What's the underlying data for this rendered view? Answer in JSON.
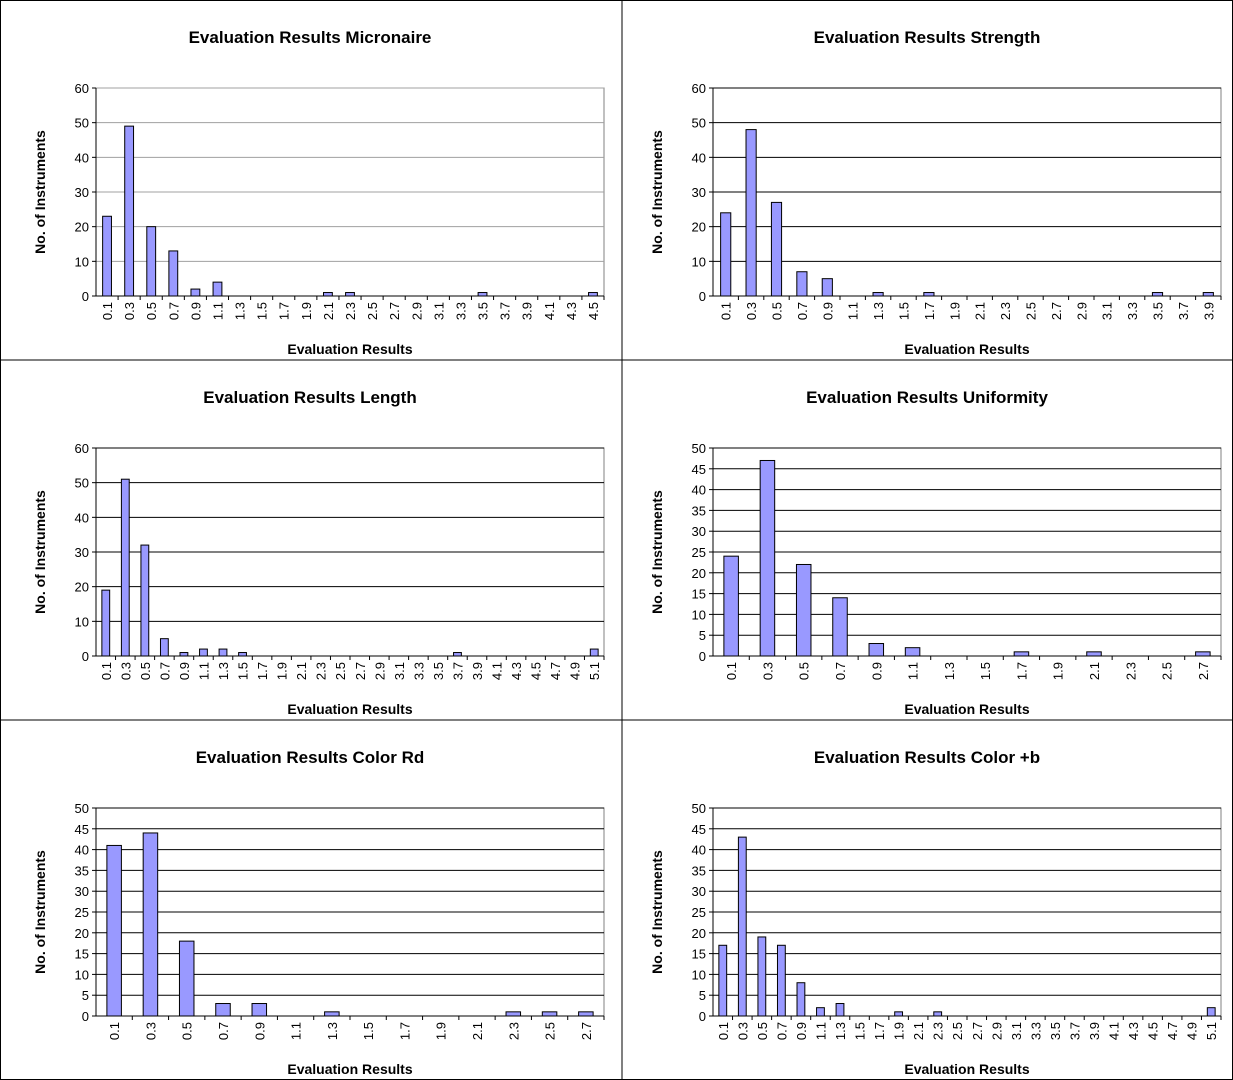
{
  "chart_data": [
    {
      "type": "bar",
      "title": "Evaluation Results Micronaire",
      "x_label": "Evaluation Results",
      "y_label": "No. of Instruments",
      "categories": [
        "0.1",
        "0.3",
        "0.5",
        "0.7",
        "0.9",
        "1.1",
        "1.3",
        "1.5",
        "1.7",
        "1.9",
        "2.1",
        "2.3",
        "2.5",
        "2.7",
        "2.9",
        "3.1",
        "3.3",
        "3.5",
        "3.7",
        "3.9",
        "4.1",
        "4.3",
        "4.5"
      ],
      "values": [
        23,
        49,
        20,
        13,
        2,
        4,
        0,
        0,
        0,
        0,
        1,
        1,
        0,
        0,
        0,
        0,
        0,
        1,
        0,
        0,
        0,
        0,
        1
      ],
      "color": "#9999ff",
      "ylim": [
        0,
        60
      ],
      "yticks": [
        0,
        10,
        20,
        30,
        40,
        50,
        60
      ],
      "grid": true,
      "grid_color": "#a0a0a0"
    },
    {
      "type": "bar",
      "title": "Evaluation Results Strength",
      "x_label": "Evaluation Results",
      "y_label": "No. of Instruments",
      "categories": [
        "0.1",
        "0.3",
        "0.5",
        "0.7",
        "0.9",
        "1.1",
        "1.3",
        "1.5",
        "1.7",
        "1.9",
        "2.1",
        "2.3",
        "2.5",
        "2.7",
        "2.9",
        "3.1",
        "3.3",
        "3.5",
        "3.7",
        "3.9"
      ],
      "values": [
        24,
        48,
        27,
        7,
        5,
        0,
        1,
        0,
        1,
        0,
        0,
        0,
        0,
        0,
        0,
        0,
        0,
        1,
        0,
        1
      ],
      "color": "#9999ff",
      "ylim": [
        0,
        60
      ],
      "yticks": [
        0,
        10,
        20,
        30,
        40,
        50,
        60
      ],
      "grid": true,
      "grid_color": "#000000"
    },
    {
      "type": "bar",
      "title": "Evaluation Results Length",
      "x_label": "Evaluation Results",
      "y_label": "No. of Instruments",
      "categories": [
        "0.1",
        "0.3",
        "0.5",
        "0.7",
        "0.9",
        "1.1",
        "1.3",
        "1.5",
        "1.7",
        "1.9",
        "2.1",
        "2.3",
        "2.5",
        "2.7",
        "2.9",
        "3.1",
        "3.3",
        "3.5",
        "3.7",
        "3.9",
        "4.1",
        "4.3",
        "4.5",
        "4.7",
        "4.9",
        "5.1"
      ],
      "values": [
        19,
        51,
        32,
        5,
        1,
        2,
        2,
        1,
        0,
        0,
        0,
        0,
        0,
        0,
        0,
        0,
        0,
        0,
        1,
        0,
        0,
        0,
        0,
        0,
        0,
        2
      ],
      "color": "#9999ff",
      "ylim": [
        0,
        60
      ],
      "yticks": [
        0,
        10,
        20,
        30,
        40,
        50,
        60
      ],
      "grid": true,
      "grid_color": "#000000"
    },
    {
      "type": "bar",
      "title": "Evaluation Results Uniformity",
      "x_label": "Evaluation Results",
      "y_label": "No. of Instruments",
      "categories": [
        "0.1",
        "0.3",
        "0.5",
        "0.7",
        "0.9",
        "1.1",
        "1.3",
        "1.5",
        "1.7",
        "1.9",
        "2.1",
        "2.3",
        "2.5",
        "2.7"
      ],
      "values": [
        24,
        47,
        22,
        14,
        3,
        2,
        0,
        0,
        1,
        0,
        1,
        0,
        0,
        1
      ],
      "color": "#9999ff",
      "ylim": [
        0,
        50
      ],
      "yticks": [
        0,
        5,
        10,
        15,
        20,
        25,
        30,
        35,
        40,
        45,
        50
      ],
      "grid": true,
      "grid_color": "#000000"
    },
    {
      "type": "bar",
      "title": "Evaluation Results Color Rd",
      "x_label": "Evaluation Results",
      "y_label": "No. of Instruments",
      "categories": [
        "0.1",
        "0.3",
        "0.5",
        "0.7",
        "0.9",
        "1.1",
        "1.3",
        "1.5",
        "1.7",
        "1.9",
        "2.1",
        "2.3",
        "2.5",
        "2.7"
      ],
      "values": [
        41,
        44,
        18,
        3,
        3,
        0,
        1,
        0,
        0,
        0,
        0,
        1,
        1,
        1
      ],
      "color": "#9999ff",
      "ylim": [
        0,
        50
      ],
      "yticks": [
        0,
        5,
        10,
        15,
        20,
        25,
        30,
        35,
        40,
        45,
        50
      ],
      "grid": true,
      "grid_color": "#000000"
    },
    {
      "type": "bar",
      "title": "Evaluation Results Color +b",
      "x_label": "Evaluation Results",
      "y_label": "No. of Instruments",
      "categories": [
        "0.1",
        "0.3",
        "0.5",
        "0.7",
        "0.9",
        "1.1",
        "1.3",
        "1.5",
        "1.7",
        "1.9",
        "2.1",
        "2.3",
        "2.5",
        "2.7",
        "2.9",
        "3.1",
        "3.3",
        "3.5",
        "3.7",
        "3.9",
        "4.1",
        "4.3",
        "4.5",
        "4.7",
        "4.9",
        "5.1"
      ],
      "values": [
        17,
        43,
        19,
        17,
        8,
        2,
        3,
        0,
        0,
        1,
        0,
        1,
        0,
        0,
        0,
        0,
        0,
        0,
        0,
        0,
        0,
        0,
        0,
        0,
        0,
        2
      ],
      "color": "#9999ff",
      "ylim": [
        0,
        50
      ],
      "yticks": [
        0,
        5,
        10,
        15,
        20,
        25,
        30,
        35,
        40,
        45,
        50
      ],
      "grid": true,
      "grid_color": "#000000"
    }
  ]
}
